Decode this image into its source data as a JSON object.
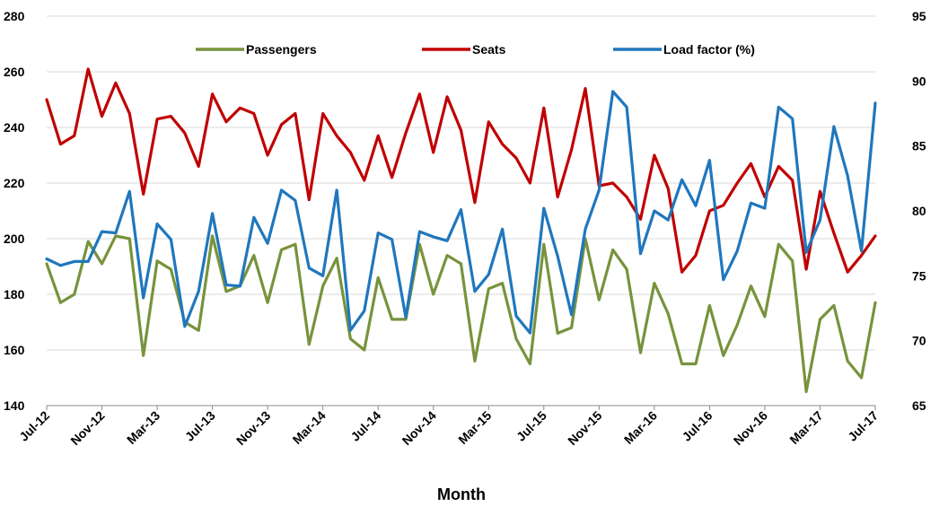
{
  "chart_data": {
    "type": "line",
    "xlabel": "Month",
    "x_tick_labels": [
      "Jul-12",
      "Nov-12",
      "Mar-13",
      "Jul-13",
      "Nov-13",
      "Mar-14",
      "Jul-14",
      "Nov-14",
      "Mar-15",
      "Jul-15",
      "Nov-15",
      "Mar-16",
      "Jul-16",
      "Nov-16",
      "Mar-17",
      "Jul-17"
    ],
    "months": [
      "Jul-12",
      "Aug-12",
      "Sep-12",
      "Oct-12",
      "Nov-12",
      "Dec-12",
      "Jan-13",
      "Feb-13",
      "Mar-13",
      "Apr-13",
      "May-13",
      "Jun-13",
      "Jul-13",
      "Aug-13",
      "Sep-13",
      "Oct-13",
      "Nov-13",
      "Dec-13",
      "Jan-14",
      "Feb-14",
      "Mar-14",
      "Apr-14",
      "May-14",
      "Jun-14",
      "Jul-14",
      "Aug-14",
      "Sep-14",
      "Oct-14",
      "Nov-14",
      "Dec-14",
      "Jan-15",
      "Feb-15",
      "Mar-15",
      "Apr-15",
      "May-15",
      "Jun-15",
      "Jul-15",
      "Aug-15",
      "Sep-15",
      "Oct-15",
      "Nov-15",
      "Dec-15",
      "Jan-16",
      "Feb-16",
      "Mar-16",
      "Apr-16",
      "May-16",
      "Jun-16",
      "Jul-16",
      "Aug-16",
      "Sep-16",
      "Oct-16",
      "Nov-16",
      "Dec-16",
      "Jan-17",
      "Feb-17",
      "Mar-17",
      "Apr-17",
      "May-17",
      "Jun-17",
      "Jul-17"
    ],
    "y_left": {
      "min": 140,
      "max": 280,
      "ticks": [
        140,
        160,
        180,
        200,
        220,
        240,
        260,
        280
      ]
    },
    "y_right": {
      "min": 65,
      "max": 95,
      "ticks": [
        65,
        70,
        75,
        80,
        85,
        90,
        95
      ]
    },
    "grid": "horizontal",
    "legend_position": "top",
    "series": [
      {
        "name": "Passengers",
        "axis": "left",
        "color": "#77933C",
        "values": [
          191,
          177,
          180,
          199,
          191,
          201,
          200,
          158,
          192,
          189,
          170,
          167,
          201,
          181,
          183,
          194,
          177,
          196,
          198,
          162,
          183,
          193,
          164,
          160,
          186,
          171,
          171,
          198,
          180,
          194,
          191,
          156,
          182,
          184,
          164,
          155,
          198,
          166,
          168,
          200,
          178,
          196,
          189,
          159,
          184,
          173,
          155,
          155,
          176,
          158,
          169,
          183,
          172,
          198,
          192,
          145,
          171,
          176,
          156,
          150,
          177
        ]
      },
      {
        "name": "Seats",
        "axis": "left",
        "color": "#C00000",
        "values": [
          250,
          234,
          237,
          261,
          244,
          256,
          245,
          216,
          243,
          244,
          238,
          226,
          252,
          242,
          247,
          245,
          230,
          241,
          245,
          214,
          245,
          237,
          231,
          221,
          237,
          222,
          238,
          252,
          231,
          251,
          239,
          213,
          242,
          234,
          229,
          220,
          247,
          215,
          232,
          254,
          219,
          220,
          215,
          207,
          230,
          218,
          188,
          194,
          210,
          212,
          220,
          227,
          215,
          226,
          221,
          189,
          217,
          202,
          188,
          194,
          201
        ]
      },
      {
        "name": "Load factor (%)",
        "axis": "right",
        "color": "#1F77BE",
        "values": [
          76.3,
          75.8,
          76.1,
          76.1,
          78.4,
          78.3,
          81.5,
          73.3,
          79.0,
          77.8,
          71.1,
          73.8,
          79.8,
          74.3,
          74.2,
          79.5,
          77.5,
          81.6,
          80.8,
          75.6,
          75.0,
          81.6,
          70.8,
          72.3,
          78.3,
          77.8,
          71.8,
          78.4,
          78.0,
          77.7,
          80.1,
          73.8,
          75.1,
          78.6,
          71.9,
          70.6,
          80.2,
          76.5,
          72.0,
          78.6,
          81.6,
          89.2,
          88.0,
          76.7,
          80.0,
          79.3,
          82.4,
          80.4,
          83.9,
          74.7,
          76.9,
          80.6,
          80.2,
          88.0,
          87.1,
          76.8,
          79.3,
          86.5,
          82.7,
          76.9,
          88.3
        ]
      }
    ]
  }
}
